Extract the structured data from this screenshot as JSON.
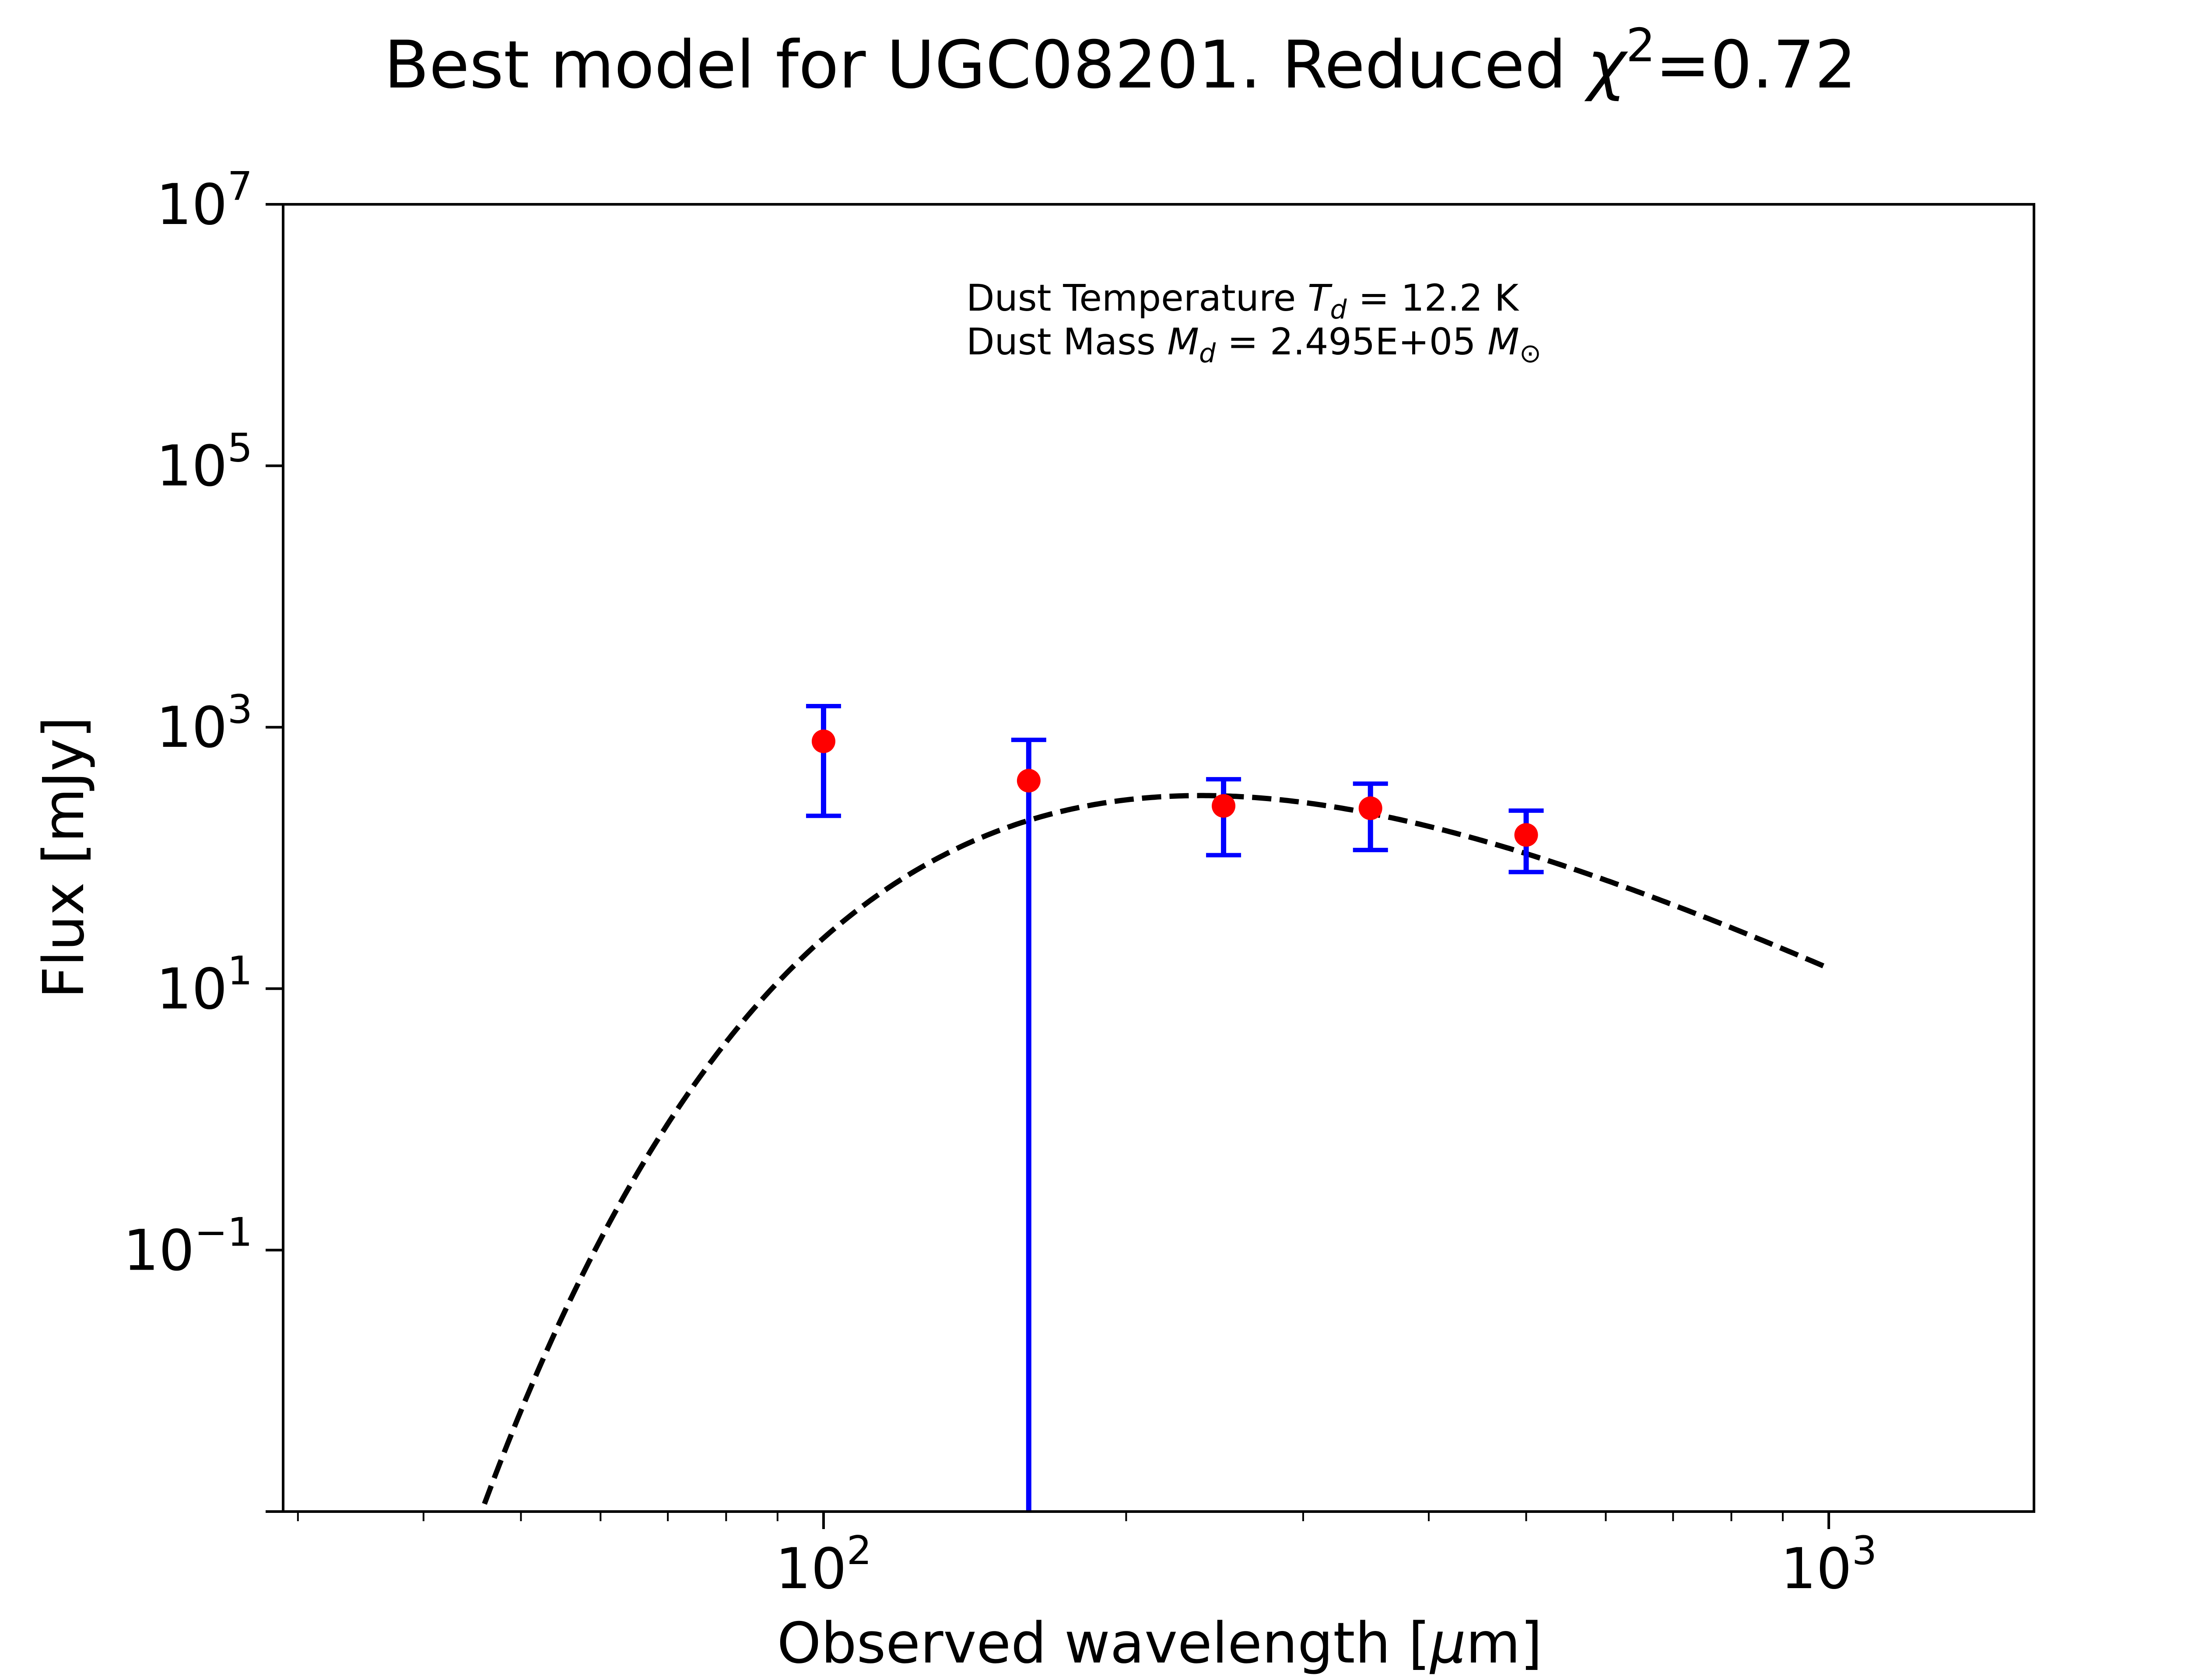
{
  "chart_data": {
    "type": "scatter",
    "title": {
      "text": "Best model for UGC08201. Reduced ",
      "chi_symbol": "χ",
      "chi_exponent": "2",
      "value": "=0.72"
    },
    "xlabel": {
      "text": "Observed wavelength [",
      "mu": "μ",
      "unit_rest": "m]"
    },
    "ylabel": "Flux [mJy]",
    "x_scale": "log",
    "y_scale": "log",
    "xlim": [
      29,
      1600
    ],
    "ylim": [
      0.001,
      10000000
    ],
    "x_ticks": [
      {
        "value": 100,
        "base": "10",
        "exp": "2"
      },
      {
        "value": 1000,
        "base": "10",
        "exp": "3"
      }
    ],
    "y_ticks": [
      {
        "value": 0.1,
        "base": "10",
        "exp": "−1"
      },
      {
        "value": 10,
        "base": "10",
        "exp": "1"
      },
      {
        "value": 1000,
        "base": "10",
        "exp": "3"
      },
      {
        "value": 100000,
        "base": "10",
        "exp": "5"
      },
      {
        "value": 10000000,
        "base": "10",
        "exp": "7"
      }
    ],
    "annotation": {
      "line1": {
        "prefix": "Dust Temperature ",
        "sym": "T",
        "sub": "d",
        "suffix": " = 12.2 K"
      },
      "line2": {
        "prefix": "Dust Mass ",
        "sym": "M",
        "sub": "d",
        "suffix": " = 2.495E+05 ",
        "sym2": "M",
        "sub2": "⊙"
      }
    },
    "series": [
      {
        "type": "errorbar",
        "color": "#ff0000",
        "error_color": "#0000ff",
        "points": [
          {
            "x": 100,
            "y": 780,
            "y_low": 210,
            "y_high": 1450
          },
          {
            "x": 160,
            "y": 390,
            "y_low": 0.001,
            "y_high": 800
          },
          {
            "x": 250,
            "y": 250,
            "y_low": 105,
            "y_high": 400
          },
          {
            "x": 350,
            "y": 240,
            "y_low": 115,
            "y_high": 370
          },
          {
            "x": 500,
            "y": 150,
            "y_low": 78,
            "y_high": 230
          }
        ]
      },
      {
        "type": "line",
        "style": "dashed",
        "color": "#000000",
        "model": "modified blackbody",
        "T_d": 12.2,
        "x_range": [
          45,
          1000
        ]
      }
    ]
  }
}
